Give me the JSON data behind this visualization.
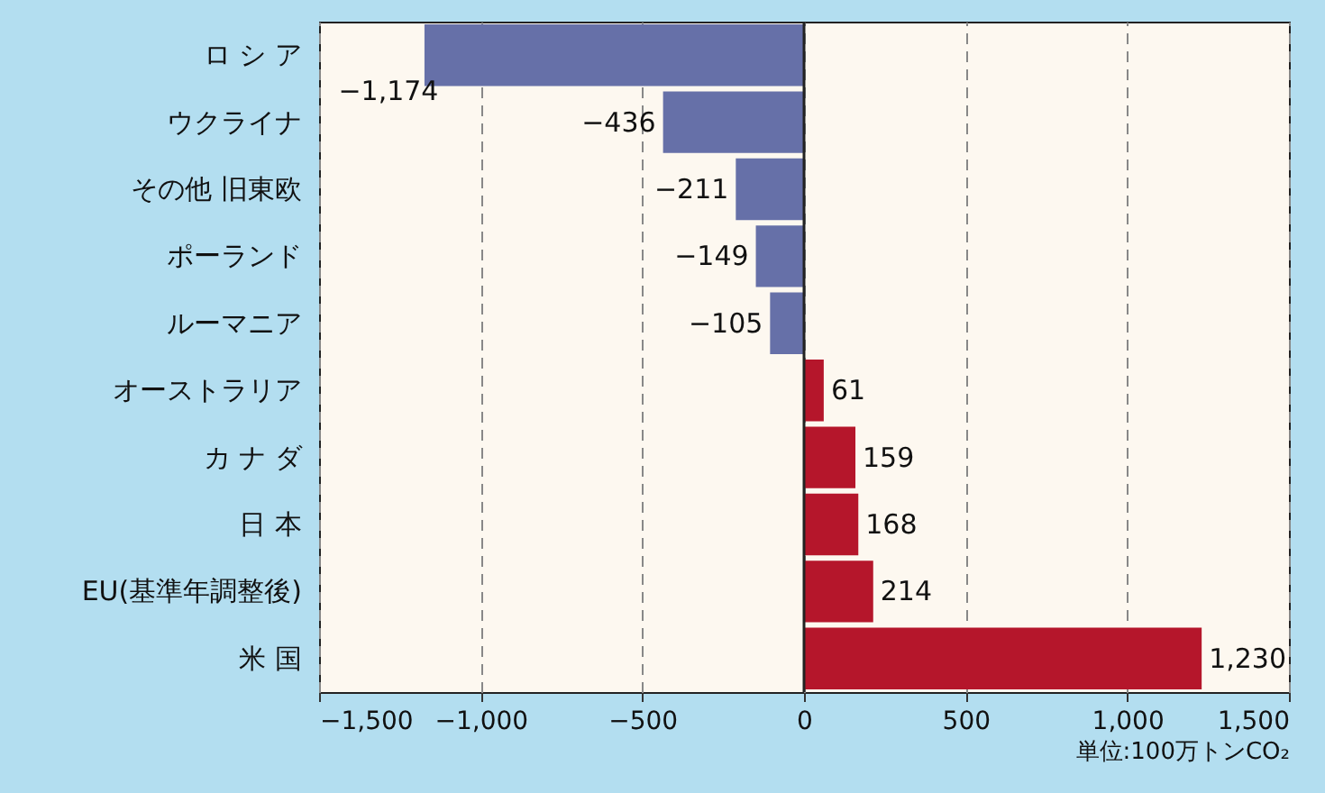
{
  "chart_data": {
    "type": "bar",
    "orientation": "horizontal",
    "categories": [
      "ロ シ ア",
      "ウクライナ",
      "その他 旧東欧",
      "ポーランド",
      "ルーマニア",
      "オーストラリア",
      "カ ナ ダ",
      "日 本",
      "EU(基準年調整後)",
      "米 国"
    ],
    "values": [
      -1174,
      -436,
      -211,
      -149,
      -105,
      61,
      159,
      168,
      214,
      1230
    ],
    "colors": [
      "#6670a8",
      "#6670a8",
      "#6670a8",
      "#6670a8",
      "#6670a8",
      "#b5162b",
      "#b5162b",
      "#b5162b",
      "#b5162b",
      "#b5162b"
    ],
    "value_labels": [
      "−1,174",
      "−436",
      "−211",
      "−149",
      "−105",
      "61",
      "159",
      "168",
      "214",
      "1,230"
    ],
    "xlim": [
      -1500,
      1500
    ],
    "xticks": [
      {
        "value": -1500,
        "label": "−1,500"
      },
      {
        "value": -1000,
        "label": "−1,000"
      },
      {
        "value": -500,
        "label": "−500"
      },
      0,
      500,
      {
        "value": 1000,
        "label": "1,000"
      },
      {
        "value": 1500,
        "label": "1,500"
      }
    ],
    "grid": "x",
    "ref_lines": [
      {
        "axis": "x",
        "value": 0,
        "color": "#222222",
        "line_style": "solid"
      }
    ],
    "annotations": [
      "単位:100万トンCO₂"
    ]
  }
}
